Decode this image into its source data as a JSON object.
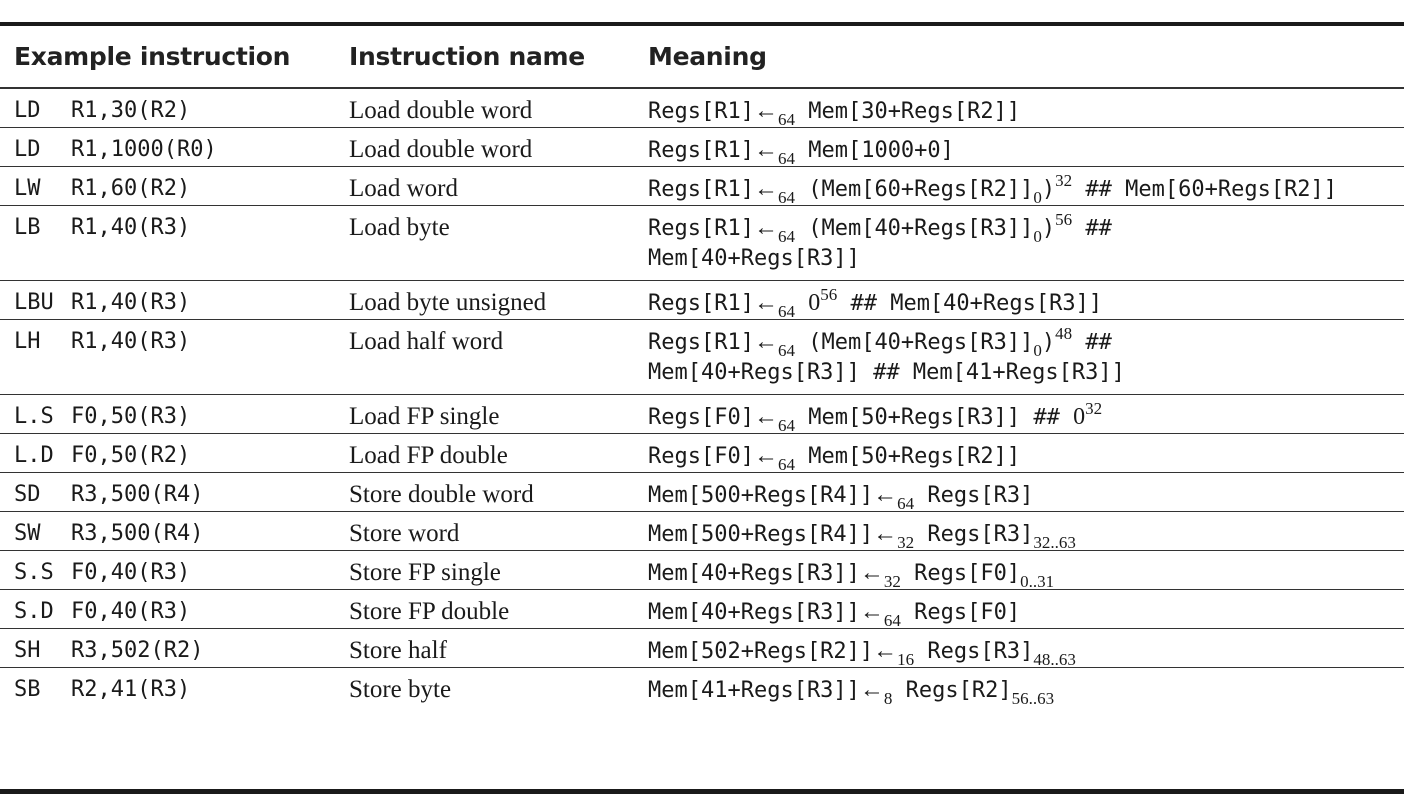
{
  "headers": {
    "example": "Example instruction",
    "name": "Instruction name",
    "meaning": "Meaning"
  },
  "rows": [
    {
      "op": "LD",
      "args": "R1,30(R2)",
      "name": "Load double word"
    },
    {
      "op": "LD",
      "args": "R1,1000(R0)",
      "name": "Load double word"
    },
    {
      "op": "LW",
      "args": "R1,60(R2)",
      "name": "Load word"
    },
    {
      "op": "LB",
      "args": "R1,40(R3)",
      "name": "Load byte"
    },
    {
      "op": "LBU",
      "args": "R1,40(R3)",
      "name": "Load byte unsigned"
    },
    {
      "op": "LH",
      "args": "R1,40(R3)",
      "name": "Load half word"
    },
    {
      "op": "L.S",
      "args": "F0,50(R3)",
      "name": "Load FP single"
    },
    {
      "op": "L.D",
      "args": "F0,50(R2)",
      "name": "Load FP double"
    },
    {
      "op": "SD",
      "args": "R3,500(R4)",
      "name": "Store double word"
    },
    {
      "op": "SW",
      "args": "R3,500(R4)",
      "name": "Store word"
    },
    {
      "op": "S.S",
      "args": "F0,40(R3)",
      "name": "Store FP single"
    },
    {
      "op": "S.D",
      "args": "F0,40(R3)",
      "name": "Store FP double"
    },
    {
      "op": "SH",
      "args": "R3,502(R2)",
      "name": "Store half"
    },
    {
      "op": "SB",
      "args": "R2,41(R3)",
      "name": "Store byte"
    }
  ],
  "meanings": {
    "m0": {
      "lhs": "Regs[R1]",
      "arrow": "←",
      "width": "64",
      "rhs": "Mem[30+Regs[R2]]"
    },
    "m1": {
      "lhs": "Regs[R1]",
      "arrow": "←",
      "width": "64",
      "rhs": "Mem[1000+0]"
    },
    "m2": {
      "lhs": "Regs[R1]",
      "arrow": "←",
      "width": "64",
      "a": " (Mem[60+Regs[R2]]",
      "bit": "0",
      "b": ")",
      "rep": "32",
      "c": " ## Mem[60+Regs[R2]]"
    },
    "m3": {
      "lhs": "Regs[R1]",
      "arrow": "←",
      "width": "64",
      "a": " (Mem[40+Regs[R3]]",
      "bit": "0",
      "b": ")",
      "rep": "56",
      "c": " ##",
      "line2": "Mem[40+Regs[R3]]"
    },
    "m4": {
      "lhs": "Regs[R1]",
      "arrow": "←",
      "width": "64",
      "zero": "0",
      "rep": "56",
      "c": " ## Mem[40+Regs[R3]]"
    },
    "m5": {
      "lhs": "Regs[R1]",
      "arrow": "←",
      "width": "64",
      "a": " (Mem[40+Regs[R3]]",
      "bit": "0",
      "b": ")",
      "rep": "48",
      "c": " ##",
      "line2": "Mem[40+Regs[R3]] ## Mem[41+Regs[R3]]"
    },
    "m6": {
      "lhs": "Regs[F0]",
      "arrow": "←",
      "width": "64",
      "a": " Mem[50+Regs[R3]] ## ",
      "zero": "0",
      "rep": "32"
    },
    "m7": {
      "lhs": "Regs[F0]",
      "arrow": "←",
      "width": "64",
      "rhs": "Mem[50+Regs[R2]]"
    },
    "m8": {
      "lhs": "Mem[500+Regs[R4]]",
      "arrow": "←",
      "width": "64",
      "rhs": "Regs[R3]"
    },
    "m9": {
      "lhs": "Mem[500+Regs[R4]]",
      "arrow": "←",
      "width": "32",
      "rhs": "Regs[R3]",
      "bits": "32..63"
    },
    "m10": {
      "lhs": "Mem[40+Regs[R3]]",
      "arrow": "←",
      "width": "32",
      "rhs": "Regs[F0]",
      "bits": "0..31"
    },
    "m11": {
      "lhs": "Mem[40+Regs[R3]]",
      "arrow": "←",
      "width": "64",
      "rhs": "Regs[F0]"
    },
    "m12": {
      "lhs": "Mem[502+Regs[R2]]",
      "arrow": "←",
      "width": "16",
      "rhs": "Regs[R3]",
      "bits": "48..63"
    },
    "m13": {
      "lhs": "Mem[41+Regs[R3]]",
      "arrow": "←",
      "width": "8",
      "rhs": "Regs[R2]",
      "bits": "56..63"
    }
  }
}
